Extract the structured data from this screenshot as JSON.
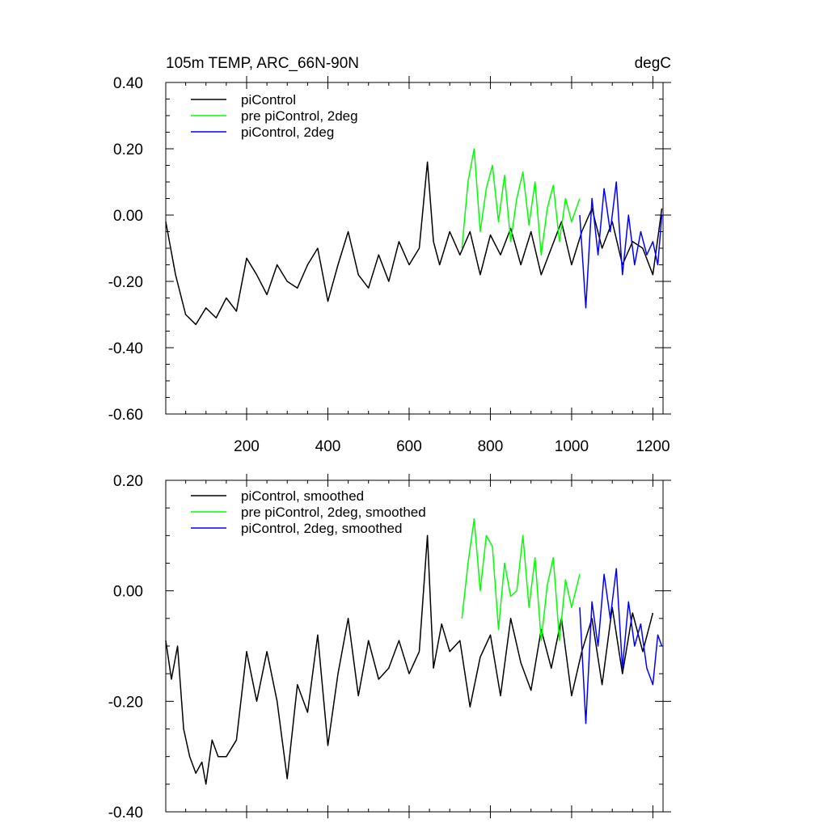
{
  "chart_data": [
    {
      "type": "line",
      "title": "105m TEMP, ARC_66N-90N",
      "units": "degC",
      "xlim": [
        1,
        1225
      ],
      "ylim": [
        -0.6,
        0.4
      ],
      "x_ticks": [
        200,
        400,
        600,
        800,
        1000,
        1200
      ],
      "x_tick_labels": [
        "200",
        "400",
        "600",
        "800",
        "1000",
        "1200"
      ],
      "y_ticks": [
        -0.6,
        -0.4,
        -0.2,
        0.0,
        0.2,
        0.4
      ],
      "y_tick_labels": [
        "-0.60",
        "-0.40",
        "-0.20",
        "0.00",
        "0.20",
        "0.40"
      ],
      "legend": [
        "piControl",
        "pre piControl, 2deg",
        "piControl, 2deg"
      ],
      "series": [
        {
          "name": "piControl",
          "color": "#000000",
          "x": [
            1,
            25,
            50,
            75,
            100,
            125,
            150,
            175,
            200,
            225,
            250,
            275,
            300,
            325,
            350,
            375,
            400,
            425,
            450,
            475,
            500,
            525,
            550,
            575,
            600,
            625,
            645,
            660,
            675,
            700,
            725,
            750,
            775,
            800,
            825,
            850,
            875,
            900,
            925,
            950,
            975,
            1000,
            1025,
            1050,
            1075,
            1100,
            1125,
            1150,
            1175,
            1200,
            1222
          ],
          "values": [
            -0.02,
            -0.18,
            -0.3,
            -0.33,
            -0.28,
            -0.31,
            -0.25,
            -0.29,
            -0.13,
            -0.18,
            -0.24,
            -0.15,
            -0.2,
            -0.22,
            -0.15,
            -0.1,
            -0.26,
            -0.15,
            -0.05,
            -0.18,
            -0.22,
            -0.12,
            -0.2,
            -0.08,
            -0.15,
            -0.1,
            0.16,
            -0.08,
            -0.15,
            -0.05,
            -0.12,
            -0.05,
            -0.18,
            -0.06,
            -0.12,
            -0.04,
            -0.15,
            -0.05,
            -0.18,
            -0.1,
            -0.02,
            -0.15,
            -0.05,
            0.02,
            -0.1,
            -0.02,
            -0.15,
            -0.08,
            -0.1,
            -0.18,
            0.02
          ]
        },
        {
          "name": "pre piControl, 2deg",
          "color": "#00ff00",
          "x": [
            730,
            745,
            760,
            775,
            790,
            805,
            820,
            835,
            850,
            865,
            880,
            895,
            910,
            925,
            940,
            955,
            970,
            985,
            1000,
            1020
          ],
          "values": [
            -0.1,
            0.1,
            0.2,
            -0.05,
            0.08,
            0.15,
            -0.02,
            0.12,
            -0.08,
            0.05,
            0.13,
            -0.03,
            0.1,
            -0.12,
            0.02,
            0.09,
            -0.08,
            0.05,
            -0.02,
            0.05
          ]
        },
        {
          "name": "piControl, 2deg",
          "color": "#0000ff",
          "x": [
            1020,
            1035,
            1050,
            1065,
            1080,
            1095,
            1110,
            1125,
            1140,
            1155,
            1170,
            1185,
            1200,
            1212,
            1222
          ],
          "values": [
            0.0,
            -0.28,
            0.05,
            -0.12,
            0.08,
            -0.05,
            0.1,
            -0.18,
            0.0,
            -0.15,
            -0.05,
            -0.12,
            -0.08,
            -0.15,
            0.0
          ]
        }
      ]
    },
    {
      "type": "line",
      "title": "",
      "xlim": [
        1,
        1225
      ],
      "ylim": [
        -0.4,
        0.2
      ],
      "x_ticks": [
        200,
        400,
        600,
        800,
        1000,
        1200
      ],
      "x_tick_labels": [],
      "y_ticks": [
        -0.4,
        -0.2,
        0.0,
        0.2
      ],
      "y_tick_labels": [
        "-0.40",
        "-0.20",
        "0.00",
        "0.20"
      ],
      "legend": [
        "piControl, smoothed",
        "pre piControl, 2deg, smoothed",
        "piControl, 2deg, smoothed"
      ],
      "series": [
        {
          "name": "piControl, smoothed",
          "color": "#000000",
          "x": [
            1,
            15,
            30,
            45,
            60,
            75,
            90,
            100,
            115,
            130,
            150,
            175,
            200,
            225,
            250,
            275,
            300,
            325,
            350,
            375,
            400,
            425,
            450,
            475,
            500,
            525,
            550,
            575,
            600,
            625,
            645,
            660,
            680,
            700,
            725,
            750,
            775,
            800,
            825,
            850,
            875,
            900,
            925,
            950,
            975,
            1000,
            1025,
            1050,
            1075,
            1100,
            1125,
            1150,
            1175,
            1200
          ],
          "values": [
            -0.09,
            -0.16,
            -0.1,
            -0.25,
            -0.3,
            -0.33,
            -0.31,
            -0.35,
            -0.27,
            -0.3,
            -0.3,
            -0.27,
            -0.11,
            -0.2,
            -0.11,
            -0.2,
            -0.34,
            -0.17,
            -0.22,
            -0.08,
            -0.28,
            -0.15,
            -0.05,
            -0.19,
            -0.09,
            -0.16,
            -0.14,
            -0.09,
            -0.15,
            -0.11,
            0.1,
            -0.14,
            -0.06,
            -0.11,
            -0.09,
            -0.21,
            -0.12,
            -0.08,
            -0.19,
            -0.05,
            -0.13,
            -0.18,
            -0.07,
            -0.14,
            -0.05,
            -0.19,
            -0.11,
            -0.05,
            -0.17,
            -0.03,
            -0.15,
            -0.04,
            -0.11,
            -0.04
          ]
        },
        {
          "name": "pre piControl, 2deg, smoothed",
          "color": "#00ff00",
          "x": [
            730,
            745,
            760,
            775,
            790,
            805,
            820,
            835,
            850,
            865,
            880,
            895,
            910,
            925,
            940,
            955,
            970,
            985,
            1000,
            1020
          ],
          "values": [
            -0.05,
            0.05,
            0.13,
            0.0,
            0.1,
            0.08,
            -0.07,
            0.05,
            -0.01,
            0.0,
            0.1,
            -0.03,
            0.06,
            -0.09,
            0.01,
            0.06,
            -0.09,
            0.02,
            -0.03,
            0.03
          ]
        },
        {
          "name": "piControl, 2deg, smoothed",
          "color": "#0000ff",
          "x": [
            1020,
            1035,
            1050,
            1065,
            1080,
            1095,
            1110,
            1125,
            1140,
            1155,
            1170,
            1185,
            1200,
            1212,
            1222
          ],
          "values": [
            -0.03,
            -0.24,
            -0.02,
            -0.1,
            0.03,
            -0.05,
            0.04,
            -0.14,
            -0.02,
            -0.1,
            -0.06,
            -0.14,
            -0.17,
            -0.08,
            -0.1
          ]
        }
      ]
    }
  ]
}
